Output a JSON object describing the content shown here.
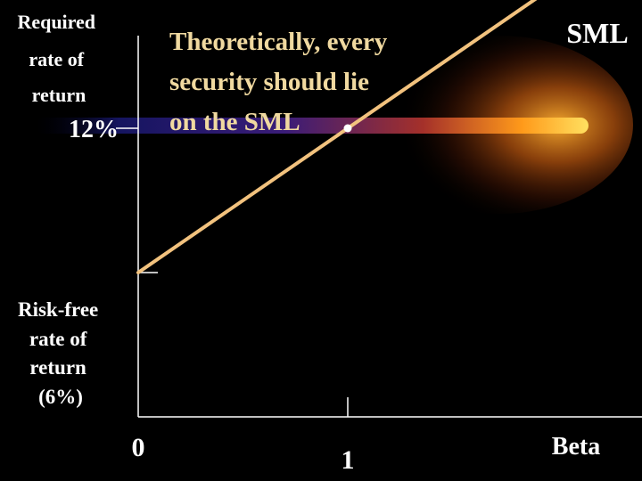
{
  "chart_data": {
    "type": "line",
    "title": "Theoretically, every security should lie on the SML",
    "title_lines": [
      "Theoretically, every",
      "security should lie",
      "on the SML"
    ],
    "ylabel_lines": [
      "Required",
      "rate of",
      "return"
    ],
    "xlabel": "Beta",
    "xlim": [
      0,
      2
    ],
    "ylim": [
      0,
      20
    ],
    "x_ticks": [
      {
        "value": 0,
        "label": "0"
      },
      {
        "value": 1,
        "label": "1"
      }
    ],
    "y_ticks": [
      {
        "value": 12,
        "label": "12%"
      }
    ],
    "risk_free": {
      "value": 6,
      "label_lines": [
        "Risk-free",
        "rate of",
        "return",
        "(6%)"
      ]
    },
    "series": [
      {
        "name": "SML",
        "points": [
          {
            "x": 0,
            "y": 6
          },
          {
            "x": 1.95,
            "y": 17.7
          }
        ]
      }
    ],
    "marker": {
      "x": 1,
      "y": 12
    },
    "grid": false
  },
  "colors": {
    "background": "#000000",
    "text": "#ffffff",
    "sml_line": "#f2c27e",
    "title_text": "#f0d9a0",
    "axis": "#ffffff"
  }
}
